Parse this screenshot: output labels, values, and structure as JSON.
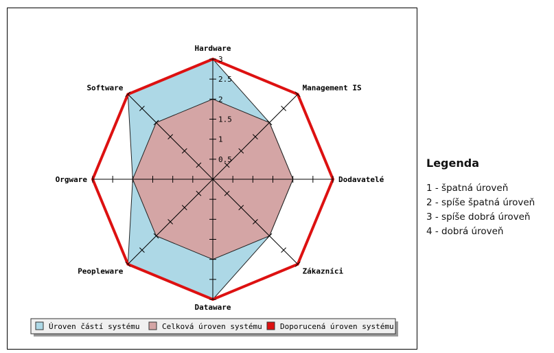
{
  "chart_data": {
    "type": "radar",
    "categories": [
      "Hardware",
      "Management IS",
      "Dodavatelé",
      "Zákazníci",
      "Dataware",
      "Peopleware",
      "Orgware",
      "Software"
    ],
    "rlim": [
      0,
      3
    ],
    "radial_ticks": [
      "0.5",
      "1",
      "1.5",
      "2",
      "2.5",
      "3"
    ],
    "grid": false,
    "legend_position": "bottom",
    "series": [
      {
        "name": "Úroven částí systému",
        "values": [
          3,
          2,
          2,
          2,
          3,
          3,
          2,
          3
        ],
        "color": "#add8e6",
        "fill": true
      },
      {
        "name": "Celková úroven systému",
        "values": [
          2,
          2,
          2,
          2,
          2,
          2,
          2,
          2
        ],
        "color": "#d4a5a5",
        "fill": true
      },
      {
        "name": "Doporucená úroven systému",
        "values": [
          3,
          3,
          3,
          3,
          3,
          3,
          3,
          3
        ],
        "color": "#dd1111",
        "fill": false
      }
    ]
  },
  "legend_panel": {
    "heading": "Legenda",
    "items": [
      "1 - špatná úroveň",
      "2 - spíše špatná úroveň",
      "3 - spíše dobrá úroveň",
      "4 - dobrá úroveň"
    ]
  }
}
